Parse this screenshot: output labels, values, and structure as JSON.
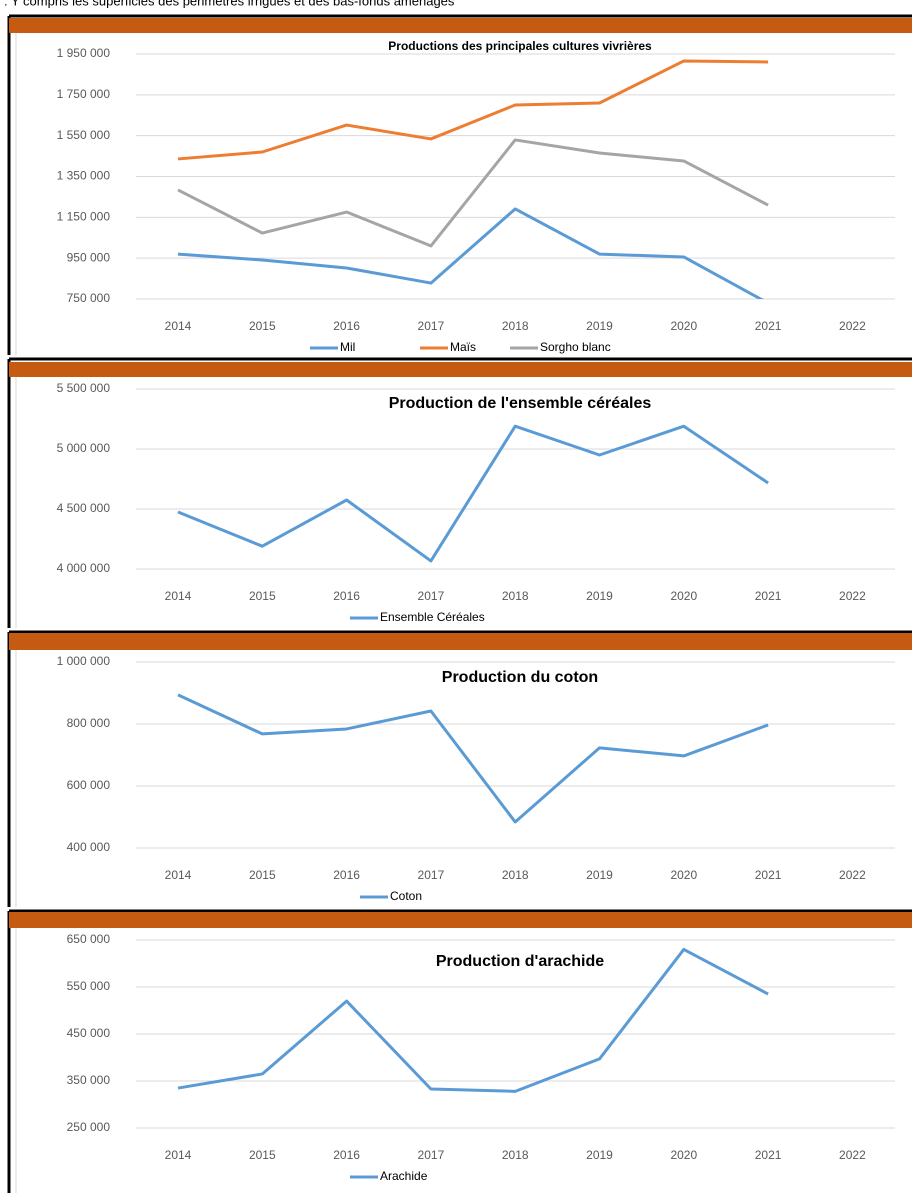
{
  "note": ": Y compris les superficies des périmètres irrigués et des bas-fonds aménagés",
  "chart_data": [
    {
      "type": "line",
      "title": "Productions des principales cultures vivrières",
      "categories": [
        "2014",
        "2015",
        "2016",
        "2017",
        "2018",
        "2019",
        "2020",
        "2021",
        "2022"
      ],
      "series": [
        {
          "name": "Mil",
          "color": "#5b9bd5",
          "values": [
            970000,
            941000,
            902000,
            828000,
            1191000,
            970000,
            956000,
            730000,
            null
          ]
        },
        {
          "name": "Maïs",
          "color": "#ed7d31",
          "values": [
            1436000,
            1470000,
            1602000,
            1534000,
            1700000,
            1710000,
            1916000,
            1911000,
            null
          ]
        },
        {
          "name": "Sorgho blanc",
          "color": "#a5a5a5",
          "values": [
            1284000,
            1073000,
            1176000,
            1010000,
            1529000,
            1465000,
            1426000,
            1210000,
            null
          ]
        }
      ],
      "ylim": [
        750000,
        1950000
      ],
      "yticks": [
        {
          "value": 750000,
          "label": "750 000"
        },
        {
          "value": 950000,
          "label": "950 000"
        },
        {
          "value": 1150000,
          "label": "1 150 000"
        },
        {
          "value": 1350000,
          "label": "1 350 000"
        },
        {
          "value": 1550000,
          "label": "1 550 000"
        },
        {
          "value": 1750000,
          "label": "1 750 000"
        },
        {
          "value": 1950000,
          "label": "1 950 000"
        }
      ],
      "grid": true,
      "legend": "bottom"
    },
    {
      "type": "line",
      "title": "Production de l'ensemble céréales",
      "categories": [
        "2014",
        "2015",
        "2016",
        "2017",
        "2018",
        "2019",
        "2020",
        "2021",
        "2022"
      ],
      "series": [
        {
          "name": "Ensemble Céréales",
          "color": "#5b9bd5",
          "values": [
            4475000,
            4190000,
            4575000,
            4067000,
            5190000,
            4950000,
            5190000,
            4717000,
            null
          ]
        }
      ],
      "ylim": [
        4000000,
        5500000
      ],
      "yticks": [
        {
          "value": 4000000,
          "label": "4 000 000"
        },
        {
          "value": 4500000,
          "label": "4 500 000"
        },
        {
          "value": 5000000,
          "label": "5 000 000"
        },
        {
          "value": 5500000,
          "label": "5 500 000"
        }
      ],
      "grid": true,
      "legend": "bottom"
    },
    {
      "type": "line",
      "title": "Production du coton",
      "categories": [
        "2014",
        "2015",
        "2016",
        "2017",
        "2018",
        "2019",
        "2020",
        "2021",
        "2022"
      ],
      "series": [
        {
          "name": "Coton",
          "color": "#5b9bd5",
          "values": [
            894000,
            768000,
            784000,
            842000,
            484000,
            723000,
            697000,
            797000,
            null
          ]
        }
      ],
      "ylim": [
        400000,
        1000000
      ],
      "yticks": [
        {
          "value": 400000,
          "label": "400 000"
        },
        {
          "value": 600000,
          "label": "600 000"
        },
        {
          "value": 800000,
          "label": "800 000"
        },
        {
          "value": 1000000,
          "label": "1 000 000"
        }
      ],
      "grid": true,
      "legend": "bottom"
    },
    {
      "type": "line",
      "title": "Production d'arachide",
      "categories": [
        "2014",
        "2015",
        "2016",
        "2017",
        "2018",
        "2019",
        "2020",
        "2021",
        "2022"
      ],
      "series": [
        {
          "name": "Arachide",
          "color": "#5b9bd5",
          "values": [
            335000,
            365000,
            520000,
            333000,
            328000,
            397000,
            630000,
            535000,
            null
          ]
        }
      ],
      "ylim": [
        250000,
        650000
      ],
      "yticks": [
        {
          "value": 250000,
          "label": "250 000"
        },
        {
          "value": 350000,
          "label": "350 000"
        },
        {
          "value": 450000,
          "label": "450 000"
        },
        {
          "value": 550000,
          "label": "550 000"
        },
        {
          "value": 650000,
          "label": "650 000"
        }
      ],
      "grid": true,
      "legend": "bottom"
    }
  ]
}
